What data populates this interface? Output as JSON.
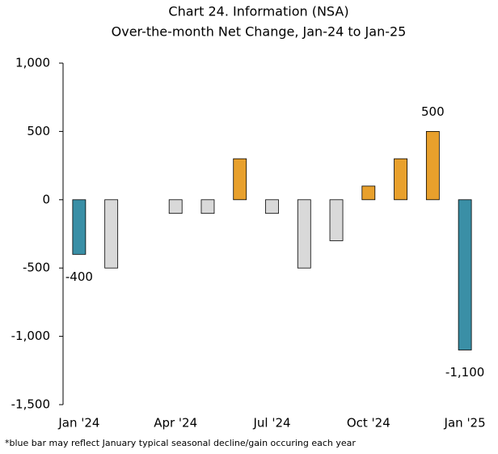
{
  "chart_data": {
    "type": "bar",
    "title": "Chart 24. Information (NSA)",
    "subtitle": "Over-the-month Net Change, Jan-24 to Jan-25",
    "categories": [
      "Jan '24",
      null,
      null,
      "Apr '24",
      null,
      null,
      "Jul '24",
      null,
      null,
      "Oct '24",
      null,
      null,
      "Jan '25"
    ],
    "values": [
      -400,
      -500,
      0,
      -100,
      -100,
      300,
      -100,
      -500,
      -300,
      100,
      300,
      500,
      -1100
    ],
    "value_labels": [
      "-400",
      null,
      null,
      null,
      null,
      null,
      null,
      null,
      null,
      null,
      null,
      "500",
      "-1,100"
    ],
    "colors": [
      "#3a8fa6",
      "#d9d9d9",
      "#d9d9d9",
      "#d9d9d9",
      "#d9d9d9",
      "#e8a02c",
      "#d9d9d9",
      "#d9d9d9",
      "#d9d9d9",
      "#e8a02c",
      "#e8a02c",
      "#e8a02c",
      "#3a8fa6"
    ],
    "ylim": [
      -1500,
      1000
    ],
    "yticks": [
      {
        "value": -1500,
        "label": "-1,500"
      },
      {
        "value": -1000,
        "label": "-1,000"
      },
      -500,
      0,
      500,
      {
        "value": 1000,
        "label": "1,000"
      }
    ],
    "grid": false,
    "footnote": "*blue bar may reflect January typical seasonal decline/gain occuring each year"
  }
}
